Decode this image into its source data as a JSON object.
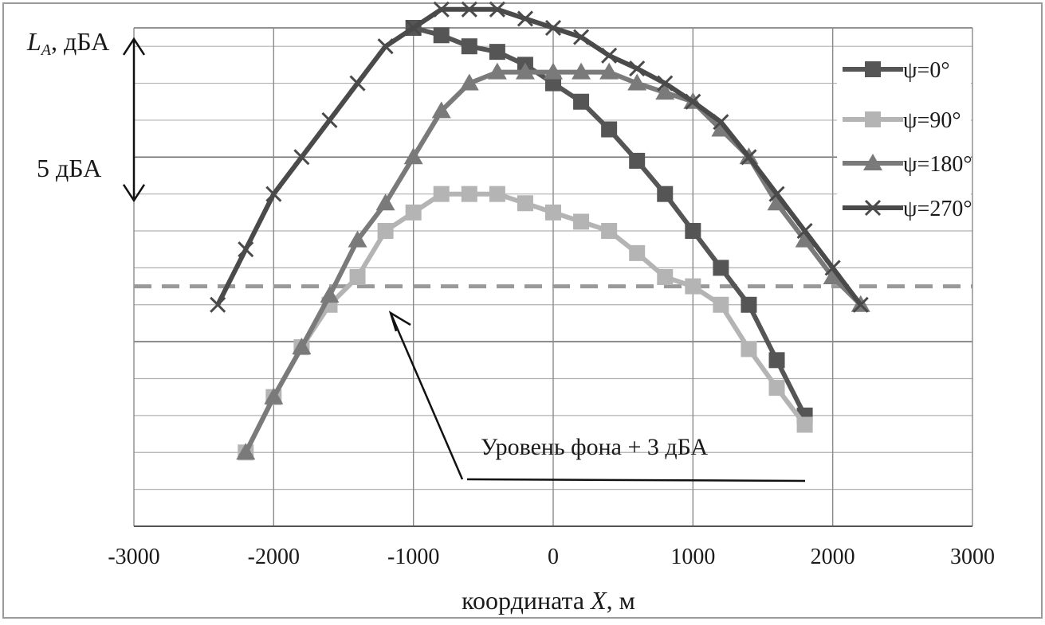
{
  "chart_data": {
    "type": "line",
    "ylabel_main": "L",
    "ylabel_sub": "A",
    "ylabel_rest": ", дБА",
    "xlabel_main": "координата ",
    "xlabel_var": "X",
    "xlabel_rest": ", м",
    "xlim": [
      -3000,
      3000
    ],
    "xticks": [
      "-3000",
      "-2000",
      "-1000",
      "0",
      "1000",
      "2000",
      "3000"
    ],
    "xtick_values": [
      -3000,
      -2000,
      -1000,
      0,
      1000,
      2000,
      3000
    ],
    "ylim": [
      0,
      27
    ],
    "grid": true,
    "legend_position": "top-right",
    "background_level": 13.0,
    "background_color": "#999999",
    "series": [
      {
        "name": "ψ=0°",
        "marker": "square",
        "color": "#555555",
        "x": [
          -1000,
          -800,
          -600,
          -400,
          -200,
          0,
          200,
          400,
          600,
          800,
          1000,
          1200,
          1400,
          1600,
          1800
        ],
        "y": [
          27.0,
          26.6,
          26.0,
          25.7,
          25.0,
          24.0,
          23.0,
          21.5,
          19.8,
          18.0,
          16.0,
          14.0,
          12.0,
          9.0,
          6.0
        ]
      },
      {
        "name": "ψ=90°",
        "marker": "square",
        "color": "#b4b4b4",
        "x": [
          -2200,
          -2000,
          -1800,
          -1600,
          -1400,
          -1200,
          -1000,
          -800,
          -600,
          -400,
          -200,
          0,
          200,
          400,
          600,
          800,
          1000,
          1200,
          1400,
          1600,
          1800
        ],
        "y": [
          4.0,
          7.0,
          9.7,
          12.0,
          13.5,
          16.0,
          17.0,
          18.0,
          18.0,
          18.0,
          17.5,
          17.0,
          16.5,
          16.0,
          14.8,
          13.5,
          13.0,
          12.0,
          9.6,
          7.5,
          5.5
        ]
      },
      {
        "name": "ψ=180°",
        "marker": "triangle",
        "color": "#7a7a7a",
        "x": [
          -2200,
          -2000,
          -1800,
          -1600,
          -1400,
          -1200,
          -1000,
          -800,
          -600,
          -400,
          -200,
          0,
          200,
          400,
          600,
          800,
          1000,
          1200,
          1400,
          1600,
          1800,
          2000,
          2200
        ],
        "y": [
          4.0,
          7.0,
          9.7,
          12.5,
          15.5,
          17.5,
          20.0,
          22.5,
          24.0,
          24.6,
          24.6,
          24.6,
          24.6,
          24.6,
          24.0,
          23.5,
          23.0,
          21.5,
          20.0,
          17.5,
          15.5,
          13.5,
          12.0
        ]
      },
      {
        "name": "ψ=270°",
        "marker": "cross",
        "color": "#4a4a4a",
        "x": [
          -2400,
          -2200,
          -2000,
          -1800,
          -1600,
          -1400,
          -1200,
          -1000,
          -800,
          -600,
          -400,
          -200,
          0,
          200,
          400,
          600,
          800,
          1000,
          1200,
          1400,
          1600,
          1800,
          2000,
          2200
        ],
        "y": [
          12.0,
          15.0,
          18.0,
          20.0,
          22.0,
          24.0,
          26.0,
          27.0,
          28.0,
          28.0,
          28.0,
          27.5,
          27.0,
          26.5,
          25.5,
          24.8,
          24.0,
          23.0,
          21.9,
          20.0,
          18.0,
          16.0,
          14.0,
          12.0
        ]
      }
    ],
    "annotations": {
      "scale_label": "5 дБА",
      "scale_value": 5,
      "background_label": "Уровень фона + 3 дБА"
    }
  }
}
